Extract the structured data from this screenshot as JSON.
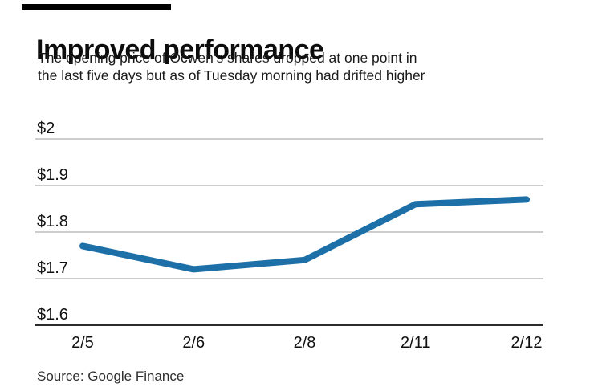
{
  "header": {
    "title": "Improved performance",
    "subtitle_line1": "The opening price of Ocwen’s shares dropped at one point in",
    "subtitle_line2": "the last five days but as of Tuesday morning had drifted higher"
  },
  "source": "Source: Google Finance",
  "colors": {
    "line": "#1d6fa8",
    "grid": "#9b9b9b",
    "axis": "#2b2b2b",
    "text": "#111111",
    "kicker": "#000000"
  },
  "chart_data": {
    "type": "line",
    "title": "Improved performance",
    "series_name": "Ocwen opening share price ($)",
    "x": [
      "2/5",
      "2/6",
      "2/8",
      "2/11",
      "2/12"
    ],
    "values": [
      1.77,
      1.72,
      1.74,
      1.86,
      1.87
    ],
    "ylim": [
      1.6,
      2.0
    ],
    "y_ticks": [
      2.0,
      1.9,
      1.8,
      1.7,
      1.6
    ],
    "y_tick_labels": [
      "$2",
      "$1.9",
      "$1.8",
      "$1.7",
      "$1.6"
    ],
    "xlabel": "",
    "ylabel": "",
    "grid": "horizontal",
    "legend": "none"
  }
}
